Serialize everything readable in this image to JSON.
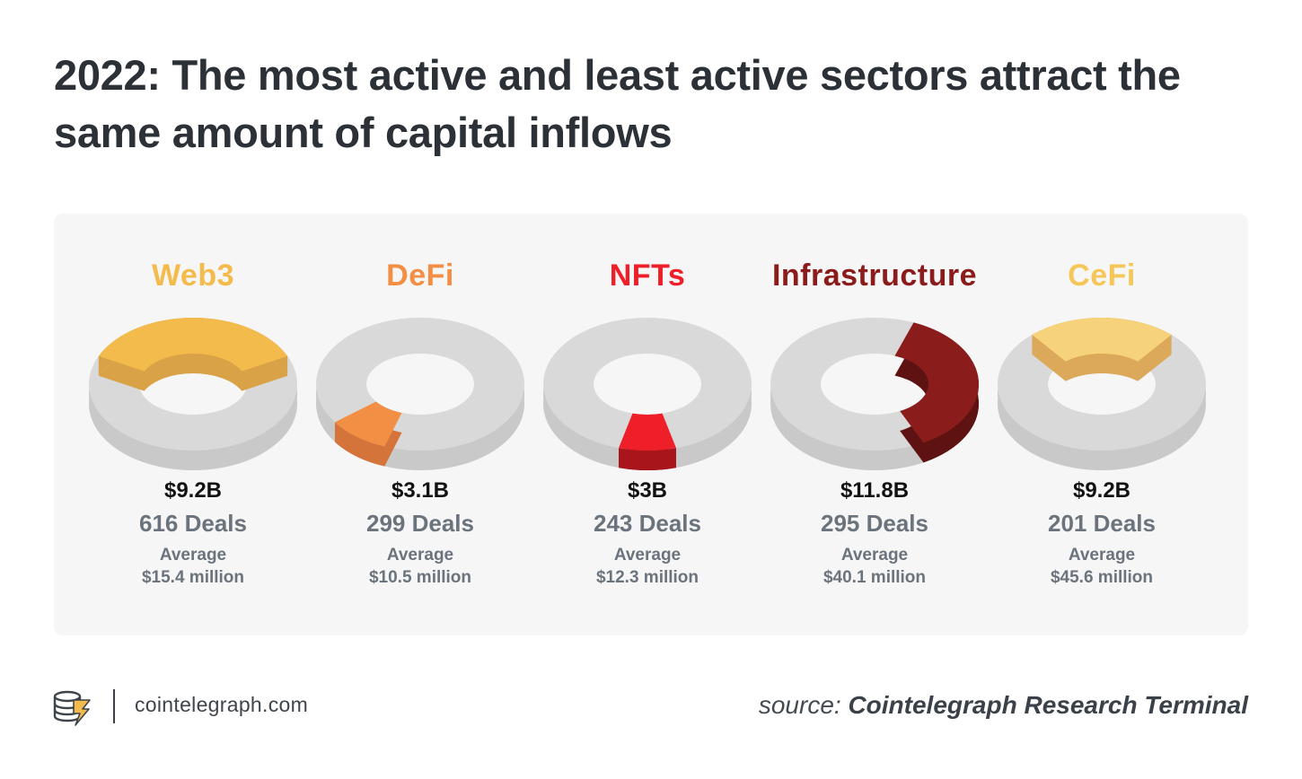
{
  "title": "2022: The most active and least active sectors attract the same amount of capital inflows",
  "footer": {
    "site": "cointelegraph.com",
    "source_label": "source:",
    "source_name": "Cointelegraph Research Terminal"
  },
  "colors": {
    "ring_gray": "#d9d9d9",
    "ring_gray_side": "#c9c9c9",
    "panel_bg": "#f6f6f6"
  },
  "chart_data": {
    "type": "pie",
    "title": "2022: The most active and least active sectors attract the same amount of capital inflows",
    "categories": [
      "Web3",
      "DeFi",
      "NFTs",
      "Infrastructure",
      "CeFi"
    ],
    "series": [
      {
        "name": "Capital",
        "values": [
          9.2,
          3.1,
          3.0,
          11.8,
          9.2
        ]
      },
      {
        "name": "Deals",
        "values": [
          616,
          299,
          243,
          295,
          201
        ]
      },
      {
        "name": "Average",
        "values": [
          15.4,
          10.5,
          12.3,
          40.1,
          45.6
        ]
      }
    ],
    "sectors": [
      {
        "name": "Web3",
        "amount": "$9.2B",
        "deals": "616 Deals",
        "avg_label": "Average",
        "avg_value": "$15.4 million",
        "color": "#f2bb4c",
        "side_color": "#d9a247",
        "highlight": {
          "start": 205,
          "end": 335
        }
      },
      {
        "name": "DeFi",
        "amount": "$3.1B",
        "deals": "299 Deals",
        "avg_label": "Average",
        "avg_value": "$10.5 million",
        "color": "#f28f45",
        "side_color": "#d4733a",
        "highlight": {
          "start": 110,
          "end": 145
        }
      },
      {
        "name": "NFTs",
        "amount": "$3B",
        "deals": "243 Deals",
        "avg_label": "Average",
        "avg_value": "$12.3 million",
        "color": "#ee1f28",
        "side_color": "#a8161c",
        "highlight": {
          "start": 74,
          "end": 106
        }
      },
      {
        "name": "Infrastructure",
        "amount": "$11.8B",
        "deals": "295 Deals",
        "avg_label": "Average",
        "avg_value": "$40.1 million",
        "color": "#8b1c1c",
        "side_color": "#5e1212",
        "highlight": {
          "start": 292,
          "end": 422
        }
      },
      {
        "name": "CeFi",
        "amount": "$9.2B",
        "deals": "201 Deals",
        "avg_label": "Average",
        "avg_value": "$45.6 million",
        "color": "#f6d37a",
        "side_color": "#dca85a",
        "highlight": {
          "start": 228,
          "end": 312
        }
      }
    ]
  }
}
